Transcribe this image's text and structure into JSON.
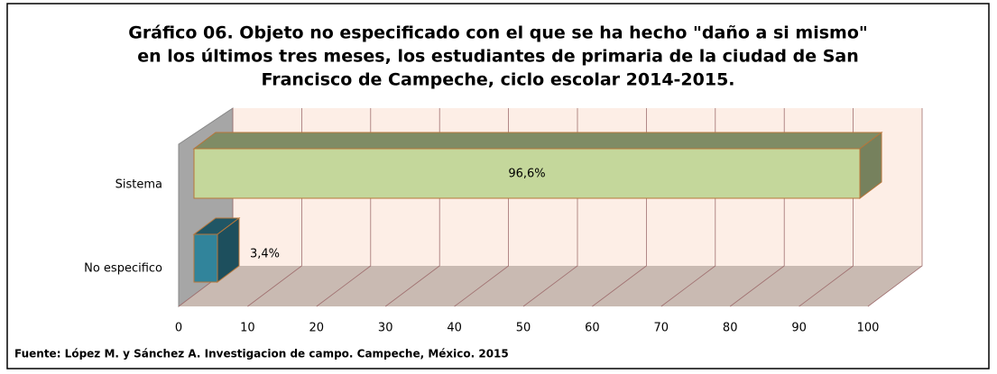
{
  "chart_data": {
    "type": "bar",
    "title": [
      "Gráfico 06. Objeto no especificado con el que se ha hecho  \"daño a si mismo\"",
      "en los últimos tres meses, los estudiantes de primaria de la ciudad de  San",
      "Francisco de Campeche, ciclo escolar 2014-2015."
    ],
    "categories": [
      "Sistema",
      "No especifico"
    ],
    "values": [
      96.6,
      3.4
    ],
    "value_labels": [
      "96,6%",
      "3,4%"
    ],
    "colors": [
      "#c4d79b",
      "#31849b"
    ],
    "xlim": [
      0,
      100
    ],
    "xticks": [
      0,
      10,
      20,
      30,
      40,
      50,
      60,
      70,
      80,
      90,
      100
    ],
    "grid": true,
    "source": "Fuente: López M. y Sánchez A. Investigacion de campo. Campeche, México. 2015"
  }
}
